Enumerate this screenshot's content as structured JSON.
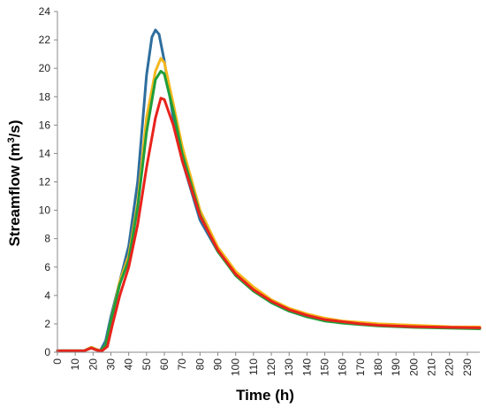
{
  "chart_data": {
    "type": "line",
    "title": "",
    "xlabel": "Time (h)",
    "ylabel_parts": [
      "Streamflow (m",
      "3",
      "/s)"
    ],
    "xlim": [
      0,
      237
    ],
    "ylim": [
      0,
      24
    ],
    "x_ticks": [
      0,
      10,
      20,
      30,
      40,
      50,
      60,
      70,
      80,
      90,
      100,
      110,
      120,
      130,
      140,
      150,
      160,
      170,
      180,
      190,
      200,
      210,
      220,
      230
    ],
    "y_ticks": [
      0,
      2,
      4,
      6,
      8,
      10,
      12,
      14,
      16,
      18,
      20,
      22,
      24
    ],
    "grid": false,
    "legend": "none",
    "series": [
      {
        "color": "#2e6e9e",
        "points": [
          [
            0,
            0.1
          ],
          [
            10,
            0.1
          ],
          [
            15,
            0.1
          ],
          [
            19,
            0.35
          ],
          [
            22,
            0.2
          ],
          [
            24,
            0.1
          ],
          [
            27,
            0.8
          ],
          [
            30,
            2.5
          ],
          [
            35,
            5
          ],
          [
            40,
            7.5
          ],
          [
            45,
            12
          ],
          [
            50,
            19.5
          ],
          [
            53,
            22.2
          ],
          [
            55,
            22.7
          ],
          [
            57,
            22.4
          ],
          [
            60,
            20.5
          ],
          [
            65,
            16.5
          ],
          [
            70,
            13.5
          ],
          [
            80,
            9.3
          ],
          [
            90,
            7.1
          ],
          [
            100,
            5.5
          ],
          [
            110,
            4.4
          ],
          [
            120,
            3.5
          ],
          [
            130,
            2.9
          ],
          [
            140,
            2.5
          ],
          [
            150,
            2.25
          ],
          [
            160,
            2.1
          ],
          [
            170,
            2
          ],
          [
            180,
            1.9
          ],
          [
            200,
            1.8
          ],
          [
            220,
            1.75
          ],
          [
            237,
            1.7
          ]
        ]
      },
      {
        "color": "#f5b81c",
        "points": [
          [
            0,
            0.1
          ],
          [
            10,
            0.1
          ],
          [
            15,
            0.1
          ],
          [
            19,
            0.35
          ],
          [
            22,
            0.2
          ],
          [
            24,
            0.1
          ],
          [
            27,
            0.5
          ],
          [
            30,
            2.2
          ],
          [
            35,
            5
          ],
          [
            40,
            6.8
          ],
          [
            45,
            10.5
          ],
          [
            50,
            16.5
          ],
          [
            55,
            19.8
          ],
          [
            58,
            20.7
          ],
          [
            60,
            20.4
          ],
          [
            65,
            17.5
          ],
          [
            70,
            14.5
          ],
          [
            80,
            10
          ],
          [
            90,
            7.4
          ],
          [
            100,
            5.7
          ],
          [
            110,
            4.6
          ],
          [
            120,
            3.7
          ],
          [
            130,
            3.1
          ],
          [
            140,
            2.7
          ],
          [
            150,
            2.4
          ],
          [
            160,
            2.2
          ],
          [
            170,
            2.1
          ],
          [
            180,
            2
          ],
          [
            200,
            1.9
          ],
          [
            220,
            1.8
          ],
          [
            237,
            1.78
          ]
        ]
      },
      {
        "color": "#1f9e3a",
        "points": [
          [
            0,
            0.1
          ],
          [
            10,
            0.1
          ],
          [
            15,
            0.1
          ],
          [
            19,
            0.3
          ],
          [
            22,
            0.15
          ],
          [
            24,
            0.1
          ],
          [
            27,
            0.5
          ],
          [
            30,
            2.2
          ],
          [
            35,
            4.8
          ],
          [
            40,
            6.5
          ],
          [
            45,
            10.2
          ],
          [
            50,
            15.5
          ],
          [
            55,
            19.2
          ],
          [
            58,
            19.8
          ],
          [
            60,
            19.6
          ],
          [
            65,
            17
          ],
          [
            70,
            14
          ],
          [
            80,
            9.7
          ],
          [
            90,
            7.1
          ],
          [
            100,
            5.4
          ],
          [
            110,
            4.3
          ],
          [
            120,
            3.5
          ],
          [
            130,
            2.9
          ],
          [
            140,
            2.5
          ],
          [
            150,
            2.2
          ],
          [
            160,
            2.05
          ],
          [
            170,
            1.95
          ],
          [
            180,
            1.85
          ],
          [
            200,
            1.75
          ],
          [
            220,
            1.7
          ],
          [
            237,
            1.65
          ]
        ]
      },
      {
        "color": "#e8231c",
        "points": [
          [
            0,
            0.1
          ],
          [
            10,
            0.1
          ],
          [
            15,
            0.1
          ],
          [
            19,
            0.3
          ],
          [
            22,
            0.15
          ],
          [
            25,
            0.1
          ],
          [
            28,
            0.4
          ],
          [
            31,
            2
          ],
          [
            35,
            4
          ],
          [
            40,
            6
          ],
          [
            45,
            9
          ],
          [
            50,
            13
          ],
          [
            55,
            16.5
          ],
          [
            58,
            17.9
          ],
          [
            60,
            17.8
          ],
          [
            65,
            16
          ],
          [
            70,
            13.5
          ],
          [
            80,
            9.6
          ],
          [
            90,
            7.2
          ],
          [
            100,
            5.5
          ],
          [
            110,
            4.4
          ],
          [
            120,
            3.6
          ],
          [
            130,
            3
          ],
          [
            140,
            2.6
          ],
          [
            150,
            2.3
          ],
          [
            160,
            2.15
          ],
          [
            170,
            2
          ],
          [
            180,
            1.9
          ],
          [
            200,
            1.8
          ],
          [
            220,
            1.75
          ],
          [
            237,
            1.72
          ]
        ]
      }
    ]
  }
}
